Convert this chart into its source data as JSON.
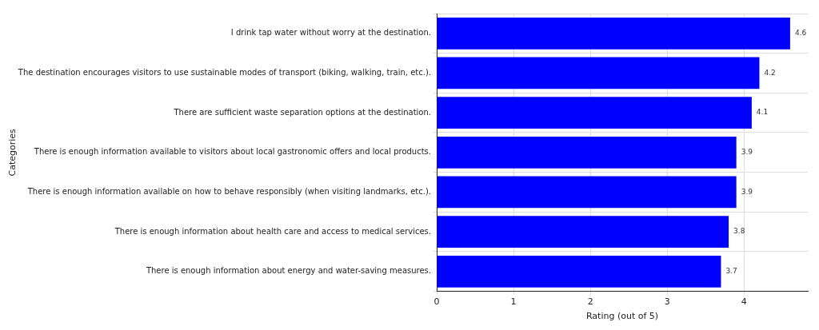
{
  "chart_data": {
    "type": "bar",
    "orientation": "horizontal",
    "categories": [
      "I drink tap water without worry at the destination.",
      "The destination encourages visitors to use sustainable modes of transport (biking, walking, train, etc.).",
      "There are sufficient waste separation options at the destination.",
      "There is enough information available to visitors about local gastronomic offers and local products.",
      "There is enough information available on how to behave responsibly (when visiting landmarks, etc.).",
      "There is enough information about health care and access to medical services.",
      "There is enough information about energy and water-saving measures."
    ],
    "values": [
      4.6,
      4.2,
      4.1,
      3.9,
      3.9,
      3.8,
      3.7
    ],
    "color": "#0000ff",
    "xlim": [
      0,
      4.83
    ],
    "xticks": [
      0,
      1,
      2,
      3,
      4
    ],
    "xlabel": "Rating (out of 5)",
    "ylabel": "Categories",
    "grid": true,
    "data_labels": true
  }
}
